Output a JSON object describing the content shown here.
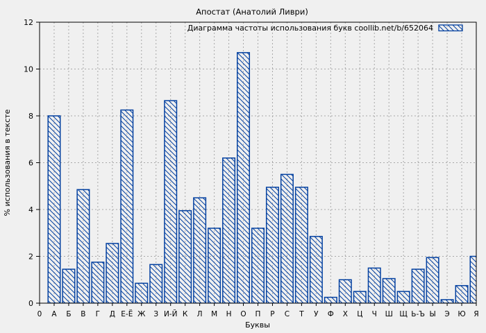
{
  "chart_data": {
    "type": "bar",
    "title": "Апостат (Анатолий Ливри)",
    "legend": "Диаграмма частоты использования букв coollib.net/b/652064",
    "legend_position": "top-right",
    "xlabel": "Буквы",
    "ylabel": "% использования в тексте",
    "ylim": [
      0,
      12
    ],
    "yticks": [
      0,
      2,
      4,
      6,
      8,
      10,
      12
    ],
    "origin_tick_label": "0",
    "grid": true,
    "categories": [
      "А",
      "Б",
      "В",
      "Г",
      "Д",
      "Е-Ё",
      "Ж",
      "З",
      "И-Й",
      "К",
      "Л",
      "М",
      "Н",
      "О",
      "П",
      "Р",
      "С",
      "Т",
      "У",
      "Ф",
      "Х",
      "Ц",
      "Ч",
      "Ш",
      "Щ",
      "Ь-Ъ",
      "Ы",
      "Э",
      "Ю",
      "Я"
    ],
    "values": [
      8.0,
      1.45,
      4.85,
      1.75,
      2.55,
      8.25,
      0.85,
      1.65,
      8.65,
      3.95,
      4.5,
      3.2,
      6.2,
      10.7,
      3.2,
      4.95,
      5.5,
      4.95,
      2.85,
      0.25,
      1.0,
      0.5,
      1.5,
      1.05,
      0.5,
      1.45,
      1.95,
      0.15,
      0.75,
      2.0
    ],
    "bar_style": "blue-diagonal-hatch",
    "bar_color": "#0340a0",
    "grid_color": "#a8a8a8",
    "background_color": "#f0f0f0"
  }
}
